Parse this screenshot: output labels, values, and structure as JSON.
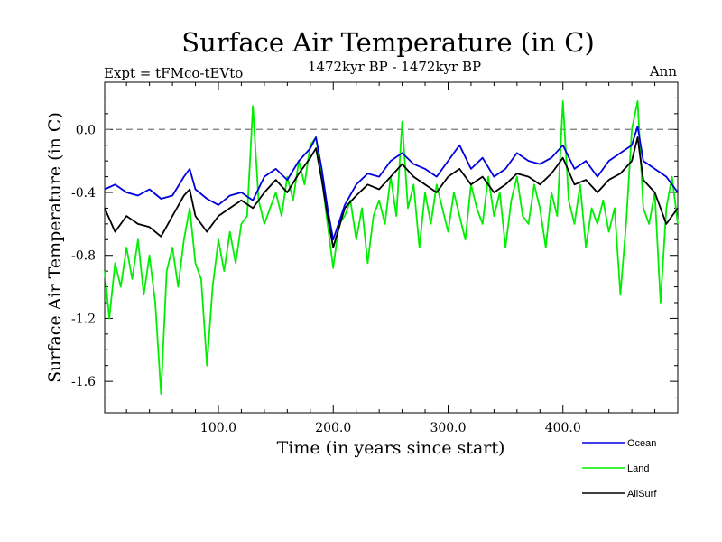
{
  "chart_data": {
    "type": "line",
    "title": "Surface Air Temperature (in C)",
    "subtitle": "1472kyr BP - 1472kyr BP",
    "left_header": "Expt = tFMco-tEVto",
    "right_header": "Ann",
    "xlabel": "Time (in years since start)",
    "ylabel": "Surface Air Temperature (in C)",
    "xlim": [
      1,
      500
    ],
    "ylim": [
      -1.8,
      0.3
    ],
    "x_ticks": [
      {
        "value": 100,
        "label": "100.0"
      },
      {
        "value": 200,
        "label": "200.0"
      },
      {
        "value": 300,
        "label": "300.0"
      },
      {
        "value": 400,
        "label": "400.0"
      }
    ],
    "y_ticks": [
      {
        "value": 0.0,
        "label": "0.0"
      },
      {
        "value": -0.4,
        "label": "-0.4"
      },
      {
        "value": -0.8,
        "label": "-0.8"
      },
      {
        "value": -1.2,
        "label": "-1.2"
      },
      {
        "value": -1.6,
        "label": "-1.6"
      }
    ],
    "reference_line": {
      "value": 0.0,
      "style": "dashed"
    },
    "legend_position": "bottom-right",
    "series": [
      {
        "name": "Ocean",
        "color": "#0000dd",
        "x": [
          1,
          10,
          20,
          30,
          40,
          50,
          60,
          70,
          75,
          80,
          90,
          100,
          110,
          120,
          130,
          140,
          150,
          160,
          170,
          180,
          185,
          190,
          195,
          200,
          210,
          220,
          230,
          240,
          250,
          260,
          270,
          280,
          290,
          300,
          310,
          320,
          330,
          340,
          350,
          360,
          370,
          380,
          390,
          400,
          410,
          420,
          430,
          440,
          450,
          460,
          465,
          470,
          480,
          490,
          500
        ],
        "values": [
          -0.38,
          -0.35,
          -0.4,
          -0.42,
          -0.38,
          -0.44,
          -0.42,
          -0.3,
          -0.25,
          -0.38,
          -0.44,
          -0.48,
          -0.42,
          -0.4,
          -0.45,
          -0.3,
          -0.25,
          -0.32,
          -0.2,
          -0.12,
          -0.05,
          -0.25,
          -0.5,
          -0.7,
          -0.48,
          -0.35,
          -0.28,
          -0.3,
          -0.2,
          -0.15,
          -0.22,
          -0.25,
          -0.3,
          -0.2,
          -0.1,
          -0.25,
          -0.18,
          -0.3,
          -0.25,
          -0.15,
          -0.2,
          -0.22,
          -0.18,
          -0.1,
          -0.25,
          -0.2,
          -0.3,
          -0.2,
          -0.15,
          -0.1,
          0.02,
          -0.2,
          -0.25,
          -0.3,
          -0.4
        ]
      },
      {
        "name": "Land",
        "color": "#00ee00",
        "x": [
          1,
          5,
          10,
          15,
          20,
          25,
          30,
          35,
          40,
          45,
          50,
          55,
          60,
          65,
          70,
          75,
          80,
          85,
          90,
          95,
          100,
          105,
          110,
          115,
          120,
          125,
          130,
          135,
          140,
          145,
          150,
          155,
          160,
          165,
          170,
          175,
          180,
          185,
          190,
          195,
          200,
          205,
          210,
          215,
          220,
          225,
          230,
          235,
          240,
          245,
          250,
          255,
          260,
          265,
          270,
          275,
          280,
          285,
          290,
          295,
          300,
          305,
          310,
          315,
          320,
          325,
          330,
          335,
          340,
          345,
          350,
          355,
          360,
          365,
          370,
          375,
          380,
          385,
          390,
          395,
          400,
          405,
          410,
          415,
          420,
          425,
          430,
          435,
          440,
          445,
          450,
          455,
          460,
          465,
          470,
          475,
          480,
          485,
          490,
          495,
          500
        ],
        "values": [
          -0.9,
          -1.2,
          -0.85,
          -1.0,
          -0.75,
          -0.95,
          -0.7,
          -1.05,
          -0.8,
          -1.1,
          -1.68,
          -0.9,
          -0.75,
          -1.0,
          -0.7,
          -0.5,
          -0.85,
          -0.95,
          -1.5,
          -1.0,
          -0.7,
          -0.9,
          -0.65,
          -0.85,
          -0.6,
          -0.55,
          0.15,
          -0.45,
          -0.6,
          -0.5,
          -0.4,
          -0.55,
          -0.3,
          -0.45,
          -0.2,
          -0.35,
          -0.1,
          -0.05,
          -0.3,
          -0.6,
          -0.88,
          -0.6,
          -0.55,
          -0.45,
          -0.7,
          -0.5,
          -0.85,
          -0.55,
          -0.45,
          -0.6,
          -0.3,
          -0.55,
          0.05,
          -0.5,
          -0.35,
          -0.75,
          -0.4,
          -0.6,
          -0.35,
          -0.5,
          -0.65,
          -0.4,
          -0.55,
          -0.7,
          -0.35,
          -0.5,
          -0.6,
          -0.3,
          -0.55,
          -0.4,
          -0.75,
          -0.45,
          -0.3,
          -0.55,
          -0.6,
          -0.35,
          -0.5,
          -0.75,
          -0.4,
          -0.55,
          0.18,
          -0.45,
          -0.6,
          -0.35,
          -0.75,
          -0.5,
          -0.6,
          -0.45,
          -0.65,
          -0.5,
          -1.05,
          -0.6,
          0.0,
          0.18,
          -0.5,
          -0.6,
          -0.4,
          -1.1,
          -0.5,
          -0.3,
          -0.6
        ]
      },
      {
        "name": "AllSurf",
        "color": "#000000",
        "x": [
          1,
          10,
          20,
          30,
          40,
          50,
          60,
          70,
          75,
          80,
          90,
          100,
          110,
          120,
          130,
          140,
          150,
          160,
          170,
          180,
          185,
          190,
          195,
          200,
          210,
          220,
          230,
          240,
          250,
          260,
          270,
          280,
          290,
          300,
          310,
          320,
          330,
          340,
          350,
          360,
          370,
          380,
          390,
          400,
          410,
          420,
          430,
          440,
          450,
          460,
          465,
          470,
          480,
          490,
          500
        ],
        "values": [
          -0.5,
          -0.65,
          -0.55,
          -0.6,
          -0.62,
          -0.68,
          -0.55,
          -0.42,
          -0.38,
          -0.55,
          -0.65,
          -0.55,
          -0.5,
          -0.45,
          -0.5,
          -0.4,
          -0.32,
          -0.4,
          -0.28,
          -0.18,
          -0.12,
          -0.32,
          -0.55,
          -0.75,
          -0.5,
          -0.42,
          -0.35,
          -0.38,
          -0.3,
          -0.22,
          -0.3,
          -0.35,
          -0.4,
          -0.3,
          -0.25,
          -0.35,
          -0.3,
          -0.4,
          -0.35,
          -0.28,
          -0.3,
          -0.35,
          -0.28,
          -0.18,
          -0.35,
          -0.32,
          -0.4,
          -0.32,
          -0.28,
          -0.2,
          -0.05,
          -0.32,
          -0.4,
          -0.6,
          -0.5
        ]
      }
    ]
  }
}
